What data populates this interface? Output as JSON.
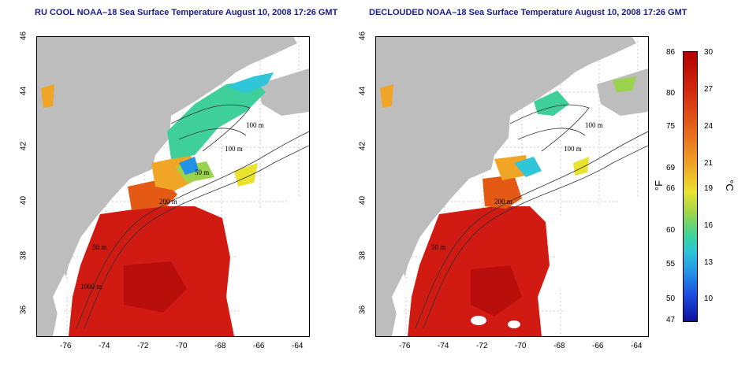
{
  "left_panel": {
    "title": "RU COOL NOAA–18 Sea Surface Temperature August 10, 2008 17:26 GMT",
    "x_ticks": [
      "-76",
      "-74",
      "-72",
      "-70",
      "-68",
      "-66",
      "-64"
    ],
    "y_ticks": [
      "46",
      "44",
      "42",
      "40",
      "38",
      "36"
    ],
    "contour_labels": [
      "100 m",
      "100 m",
      "50 m",
      "200 m",
      "50 m",
      "1000 m"
    ]
  },
  "right_panel": {
    "title": "DECLOUDED NOAA–18 Sea Surface Temperature August 10, 2008 17:26 GMT",
    "x_ticks": [
      "-76",
      "-74",
      "-72",
      "-70",
      "-68",
      "-66",
      "-64"
    ],
    "y_ticks": [
      "46",
      "44",
      "42",
      "40",
      "38",
      "36"
    ],
    "contour_labels": [
      "100 m",
      "100 m",
      "200 m",
      "50 m"
    ]
  },
  "colorbar": {
    "fahrenheit_ticks": [
      "86",
      "80",
      "75",
      "69",
      "66",
      "60",
      "55",
      "50",
      "47"
    ],
    "celsius_ticks": [
      "30",
      "27",
      "24",
      "21",
      "19",
      "16",
      "13",
      "10"
    ],
    "fahrenheit_unit": "°F",
    "celsius_unit": "°C",
    "range_c": [
      8,
      30
    ]
  },
  "colors": {
    "land": "#bdbdbd",
    "warm": "#d11a12",
    "title": "#1a1a8c"
  }
}
